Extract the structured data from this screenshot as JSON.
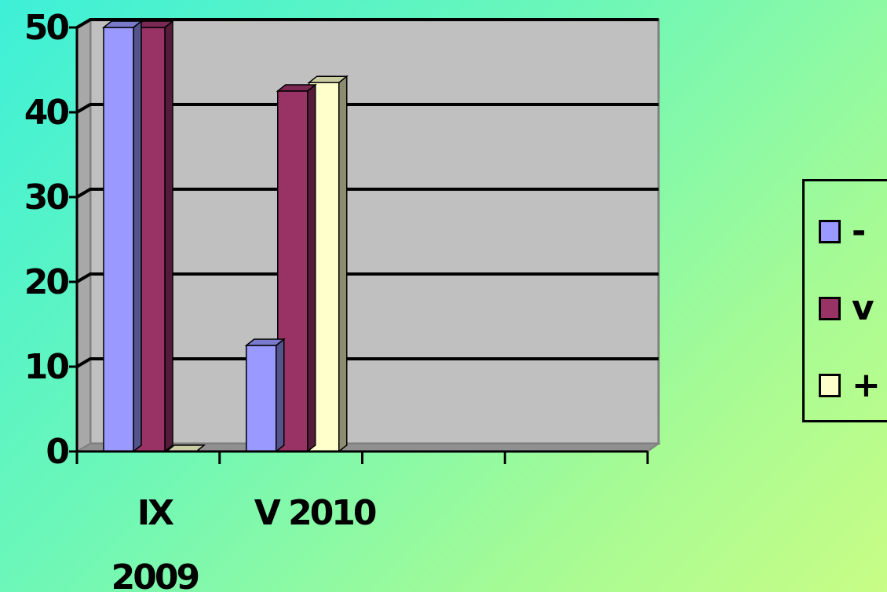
{
  "chart_data": {
    "type": "bar",
    "categories": [
      "IX\n2009",
      "V 2010",
      "",
      ""
    ],
    "category_lines": [
      [
        "IX",
        "2009"
      ],
      [
        "V 2010"
      ],
      [],
      []
    ],
    "series": [
      {
        "name": "-",
        "values": [
          50,
          12.5,
          null,
          null
        ],
        "color": "#9999ff"
      },
      {
        "name": "v",
        "values": [
          50,
          42.5,
          null,
          null
        ],
        "color": "#993366"
      },
      {
        "name": "+",
        "values": [
          0,
          43.5,
          null,
          null
        ],
        "color": "#ffffcc"
      }
    ],
    "ylim": [
      0,
      50
    ],
    "yticks": [
      "0",
      "10",
      "20",
      "30",
      "40",
      "50"
    ],
    "grid": true,
    "legend_position": "right",
    "title": "",
    "xlabel": "",
    "ylabel": ""
  }
}
